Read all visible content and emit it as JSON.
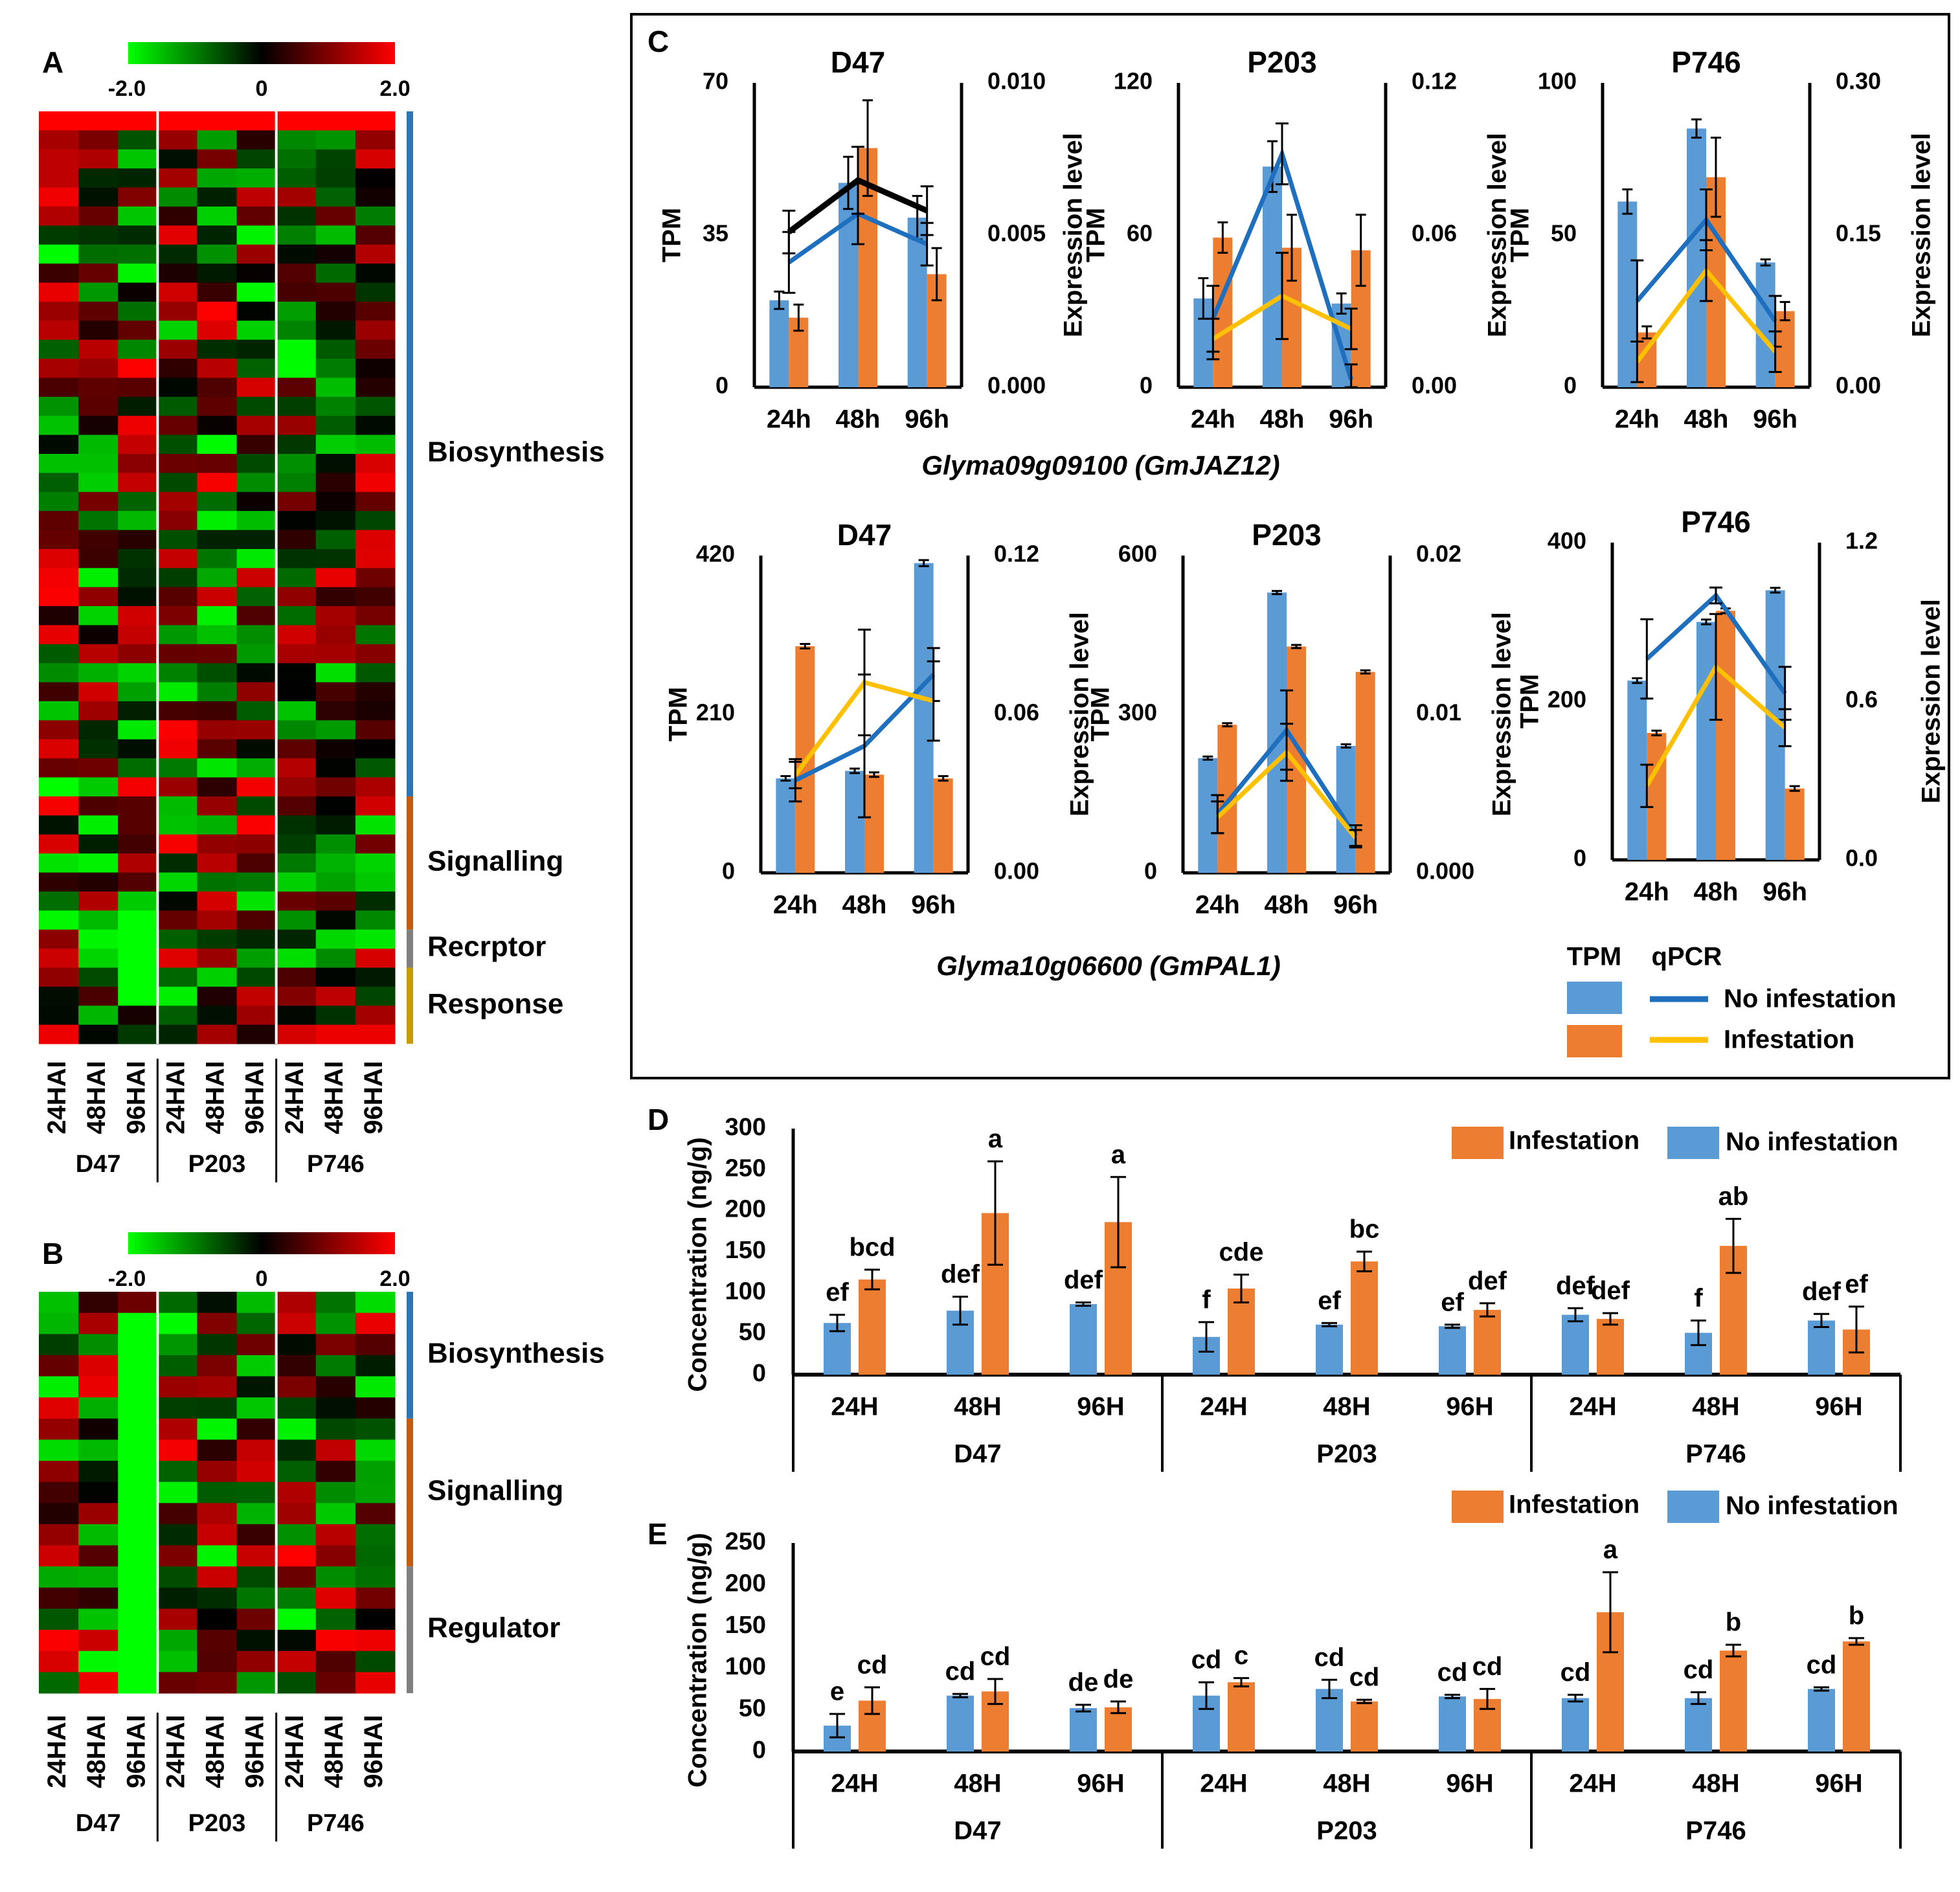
{
  "colors": {
    "blue_bar": "#5b9bd5",
    "orange_bar": "#ed7d31",
    "line_blue": "#1f6fbf",
    "line_yellow": "#ffc000",
    "cat_biosynthesis": "#2e75b6",
    "cat_signalling": "#c55a11",
    "cat_receptor": "#808080",
    "cat_response": "#c89b00",
    "cat_regulator": "#808080"
  },
  "panels": {
    "A": {
      "letter": "A",
      "scale": {
        "min": "-2.0",
        "mid": "0",
        "max": "2.0"
      },
      "rows": 49,
      "sample_labels": [
        "24HAI",
        "48HAI",
        "96HAI",
        "24HAI",
        "48HAI",
        "96HAI",
        "24HAI",
        "48HAI",
        "96HAI"
      ],
      "groups": [
        "D47",
        "P203",
        "P746"
      ],
      "categories": [
        {
          "label": "Biosynthesis",
          "rows": 36,
          "color_key": "cat_biosynthesis"
        },
        {
          "label": "Signalling",
          "rows": 7,
          "color_key": "cat_signalling"
        },
        {
          "label": "Recrptor",
          "rows": 2,
          "color_key": "cat_receptor"
        },
        {
          "label": "Response",
          "rows": 4,
          "color_key": "cat_response"
        }
      ]
    },
    "B": {
      "letter": "B",
      "scale": {
        "min": "-2.0",
        "mid": "0",
        "max": "2.0"
      },
      "rows": 19,
      "sample_labels": [
        "24HAI",
        "48HAI",
        "96HAI",
        "24HAI",
        "48HAI",
        "96HAI",
        "24HAI",
        "48HAI",
        "96HAI"
      ],
      "groups": [
        "D47",
        "P203",
        "P746"
      ],
      "categories": [
        {
          "label": "Biosynthesis",
          "rows": 6,
          "color_key": "cat_biosynthesis"
        },
        {
          "label": "Signalling",
          "rows": 7,
          "color_key": "cat_signalling"
        },
        {
          "label": "Regulator",
          "rows": 6,
          "color_key": "cat_regulator"
        }
      ]
    },
    "C": {
      "letter": "C",
      "gene_titles": [
        "Glyma09g09100 (GmJAZ12)",
        "Glyma10g06600  (GmPAL1)"
      ],
      "legend": {
        "tpm_header": "TPM",
        "qpcr_header": "qPCR",
        "no_infestation": "No infestation",
        "infestation": "Infestation"
      }
    },
    "D": {
      "letter": "D",
      "ylabel": "Concentration (ng/g)",
      "legend": {
        "infestation": "Infestation",
        "no_infestation": "No infestation"
      },
      "time_labels": [
        "24H",
        "48H",
        "96H",
        "24H",
        "48H",
        "96H",
        "24H",
        "48H",
        "96H"
      ],
      "groups": [
        "D47",
        "P203",
        "P746"
      ]
    },
    "E": {
      "letter": "E",
      "ylabel": "Concentration (ng/g)",
      "legend": {
        "infestation": "Infestation",
        "no_infestation": "No infestation"
      },
      "time_labels": [
        "24H",
        "48H",
        "96H",
        "24H",
        "48H",
        "96H",
        "24H",
        "48H",
        "96H"
      ],
      "groups": [
        "D47",
        "P203",
        "P746"
      ]
    }
  },
  "chart_data": [
    {
      "type": "bar",
      "panel": "C",
      "title": "D47",
      "categories": [
        "24h",
        "48h",
        "96h"
      ],
      "ylabel": "TPM",
      "ylim": [
        0,
        70
      ],
      "yticks": [
        "0",
        "35",
        "70"
      ],
      "y2label": "Expression level",
      "y2lim": [
        0,
        0.01
      ],
      "y2ticks": [
        "0.000",
        "0.005",
        "0.010"
      ],
      "bars": [
        {
          "series": "No infestation",
          "values": [
            20,
            47,
            39
          ],
          "err": [
            2,
            6,
            5
          ]
        },
        {
          "series": "Infestation",
          "values": [
            16,
            55,
            26
          ],
          "err": [
            3,
            11,
            6
          ]
        }
      ],
      "lines": [
        {
          "series": "No infestation",
          "values": [
            0.0041,
            0.0057,
            0.0047
          ],
          "err": [
            0.001,
            0.001,
            0.0007
          ],
          "color_key": "line_blue"
        },
        {
          "series": "Infestation",
          "values": [
            0.0051,
            0.0068,
            0.0058
          ],
          "err": [
            0.0007,
            0.0011,
            0.0008
          ],
          "color_key": "line_black"
        }
      ]
    },
    {
      "type": "bar",
      "panel": "C",
      "title": "P203",
      "categories": [
        "24h",
        "48h",
        "96h"
      ],
      "ylabel": "TPM",
      "ylim": [
        0,
        120
      ],
      "yticks": [
        "0",
        "60",
        "120"
      ],
      "y2label": "Expression level",
      "y2lim": [
        0,
        0.12
      ],
      "y2ticks": [
        "0.00",
        "0.06",
        "0.12"
      ],
      "bars": [
        {
          "series": "No infestation",
          "values": [
            35,
            87,
            33
          ],
          "err": [
            8,
            10,
            4
          ]
        },
        {
          "series": "Infestation",
          "values": [
            59,
            55,
            54
          ],
          "err": [
            6,
            13,
            14
          ]
        }
      ],
      "lines": [
        {
          "series": "No infestation",
          "values": [
            0.027,
            0.092,
            0.003
          ],
          "err": [
            0.013,
            0.012,
            0.006
          ]
        },
        {
          "series": "Infestation",
          "values": [
            0.019,
            0.036,
            0.023
          ],
          "err": [
            0.008,
            0.017,
            0.008
          ]
        }
      ]
    },
    {
      "type": "bar",
      "panel": "C",
      "title": "P746",
      "categories": [
        "24h",
        "48h",
        "96h"
      ],
      "ylabel": "TPM",
      "ylim": [
        0,
        100
      ],
      "yticks": [
        "0",
        "50",
        "100"
      ],
      "y2label": "Expression level",
      "y2lim": [
        0,
        0.3
      ],
      "y2ticks": [
        "0.00",
        "0.15",
        "0.30"
      ],
      "bars": [
        {
          "series": "No infestation",
          "values": [
            61,
            85,
            41
          ],
          "err": [
            4,
            3,
            1
          ]
        },
        {
          "series": "Infestation",
          "values": [
            18,
            69,
            25
          ],
          "err": [
            2,
            13,
            3
          ]
        }
      ],
      "lines": [
        {
          "series": "No infestation",
          "values": [
            0.085,
            0.165,
            0.065
          ],
          "err": [
            0.04,
            0.03,
            0.025
          ]
        },
        {
          "series": "Infestation",
          "values": [
            0.025,
            0.115,
            0.035
          ],
          "err": [
            0.02,
            0.03,
            0.02
          ]
        }
      ]
    },
    {
      "type": "bar",
      "panel": "C",
      "title": "D47",
      "categories": [
        "24h",
        "48h",
        "96h"
      ],
      "ylabel": "TPM",
      "ylim": [
        0,
        420
      ],
      "yticks": [
        "0",
        "210",
        "420"
      ],
      "y2label": "Expression level",
      "y2lim": [
        0,
        0.12
      ],
      "y2ticks": [
        "0.00",
        "0.06",
        "0.12"
      ],
      "bars": [
        {
          "series": "No infestation",
          "values": [
            125,
            135,
            410
          ],
          "err": [
            3,
            3,
            4
          ]
        },
        {
          "series": "Infestation",
          "values": [
            300,
            130,
            125
          ],
          "err": [
            3,
            3,
            3
          ]
        }
      ],
      "lines": [
        {
          "series": "No infestation",
          "values": [
            0.035,
            0.048,
            0.075
          ],
          "err": [
            0.008,
            0.027,
            0.01
          ]
        },
        {
          "series": "Infestation",
          "values": [
            0.037,
            0.072,
            0.065
          ],
          "err": [
            0.005,
            0.02,
            0.015
          ]
        }
      ]
    },
    {
      "type": "bar",
      "panel": "C",
      "title": "P203",
      "categories": [
        "24h",
        "48h",
        "96h"
      ],
      "ylabel": "TPM",
      "ylim": [
        0,
        600
      ],
      "yticks": [
        "0",
        "300",
        "600"
      ],
      "y2label": "Expression level",
      "y2lim": [
        0,
        0.02
      ],
      "y2ticks": [
        "0.000",
        "0.01",
        "0.02"
      ],
      "bars": [
        {
          "series": "No infestation",
          "values": [
            217,
            530,
            240
          ],
          "err": [
            3,
            3,
            3
          ]
        },
        {
          "series": "Infestation",
          "values": [
            280,
            428,
            380
          ],
          "err": [
            3,
            3,
            3
          ]
        }
      ],
      "lines": [
        {
          "series": "No infestation",
          "values": [
            0.0037,
            0.009,
            0.0023
          ],
          "err": [
            0.0012,
            0.0025,
            0.0007
          ]
        },
        {
          "series": "Infestation",
          "values": [
            0.0035,
            0.0076,
            0.0022
          ],
          "err": [
            0.001,
            0.0018,
            0.0005
          ]
        }
      ]
    },
    {
      "type": "bar",
      "panel": "C",
      "title": "P746",
      "categories": [
        "24h",
        "48h",
        "96h"
      ],
      "ylabel": "TPM",
      "ylim": [
        0,
        400
      ],
      "yticks": [
        "0",
        "200",
        "400"
      ],
      "y2label": "Expression level",
      "y2lim": [
        0,
        1.2
      ],
      "y2ticks": [
        "0.0",
        "0.6",
        "1.2"
      ],
      "bars": [
        {
          "series": "No infestation",
          "values": [
            226,
            300,
            340
          ],
          "err": [
            3,
            3,
            3
          ]
        },
        {
          "series": "Infestation",
          "values": [
            160,
            314,
            90
          ],
          "err": [
            3,
            3,
            3
          ]
        }
      ],
      "lines": [
        {
          "series": "No infestation",
          "values": [
            0.76,
            1.0,
            0.63
          ],
          "err": [
            0.15,
            0.03,
            0.1
          ]
        },
        {
          "series": "Infestation",
          "values": [
            0.28,
            0.73,
            0.5
          ],
          "err": [
            0.08,
            0.2,
            0.07
          ]
        }
      ]
    },
    {
      "type": "bar",
      "panel": "D",
      "ylabel": "Concentration (ng/g)",
      "ylim": [
        0,
        300
      ],
      "yticks": [
        "0",
        "50",
        "100",
        "150",
        "200",
        "250",
        "300"
      ],
      "categories": [
        "24H",
        "48H",
        "96H",
        "24H",
        "48H",
        "96H",
        "24H",
        "48H",
        "96H"
      ],
      "series": [
        {
          "name": "No infestation",
          "values": [
            63,
            78,
            86,
            46,
            61,
            59,
            73,
            51,
            66
          ],
          "err": [
            10,
            17,
            2,
            18,
            2,
            2,
            8,
            15,
            8
          ],
          "labels": [
            "ef",
            "def",
            "def",
            "f",
            "ef",
            "ef",
            "def",
            "f",
            "def"
          ]
        },
        {
          "name": "Infestation",
          "values": [
            116,
            197,
            186,
            105,
            138,
            79,
            68,
            157,
            55
          ],
          "err": [
            12,
            63,
            55,
            17,
            12,
            8,
            7,
            33,
            28
          ],
          "labels": [
            "bcd",
            "a",
            "a",
            "cde",
            "bc",
            "def",
            "def",
            "ab",
            "ef"
          ]
        }
      ]
    },
    {
      "type": "bar",
      "panel": "E",
      "ylabel": "Concentration (ng/g)",
      "ylim": [
        0,
        250
      ],
      "yticks": [
        "0",
        "50",
        "100",
        "150",
        "200",
        "250"
      ],
      "categories": [
        "24H",
        "48H",
        "96H",
        "24H",
        "48H",
        "96H",
        "24H",
        "48H",
        "96H"
      ],
      "series": [
        {
          "name": "No infestation",
          "values": [
            31,
            67,
            52,
            67,
            75,
            66,
            64,
            64,
            75
          ],
          "err": [
            14,
            2,
            4,
            16,
            11,
            2,
            4,
            7,
            2
          ],
          "labels": [
            "e",
            "cd",
            "de",
            "cd",
            "cd",
            "cd",
            "cd",
            "cd",
            "cd"
          ]
        },
        {
          "name": "Infestation",
          "values": [
            61,
            72,
            53,
            83,
            60,
            63,
            167,
            121,
            132
          ],
          "err": [
            16,
            15,
            7,
            5,
            2,
            12,
            48,
            7,
            4
          ],
          "labels": [
            "cd",
            "cd",
            "de",
            "c",
            "cd",
            "cd",
            "a",
            "b",
            "b"
          ]
        }
      ]
    }
  ]
}
